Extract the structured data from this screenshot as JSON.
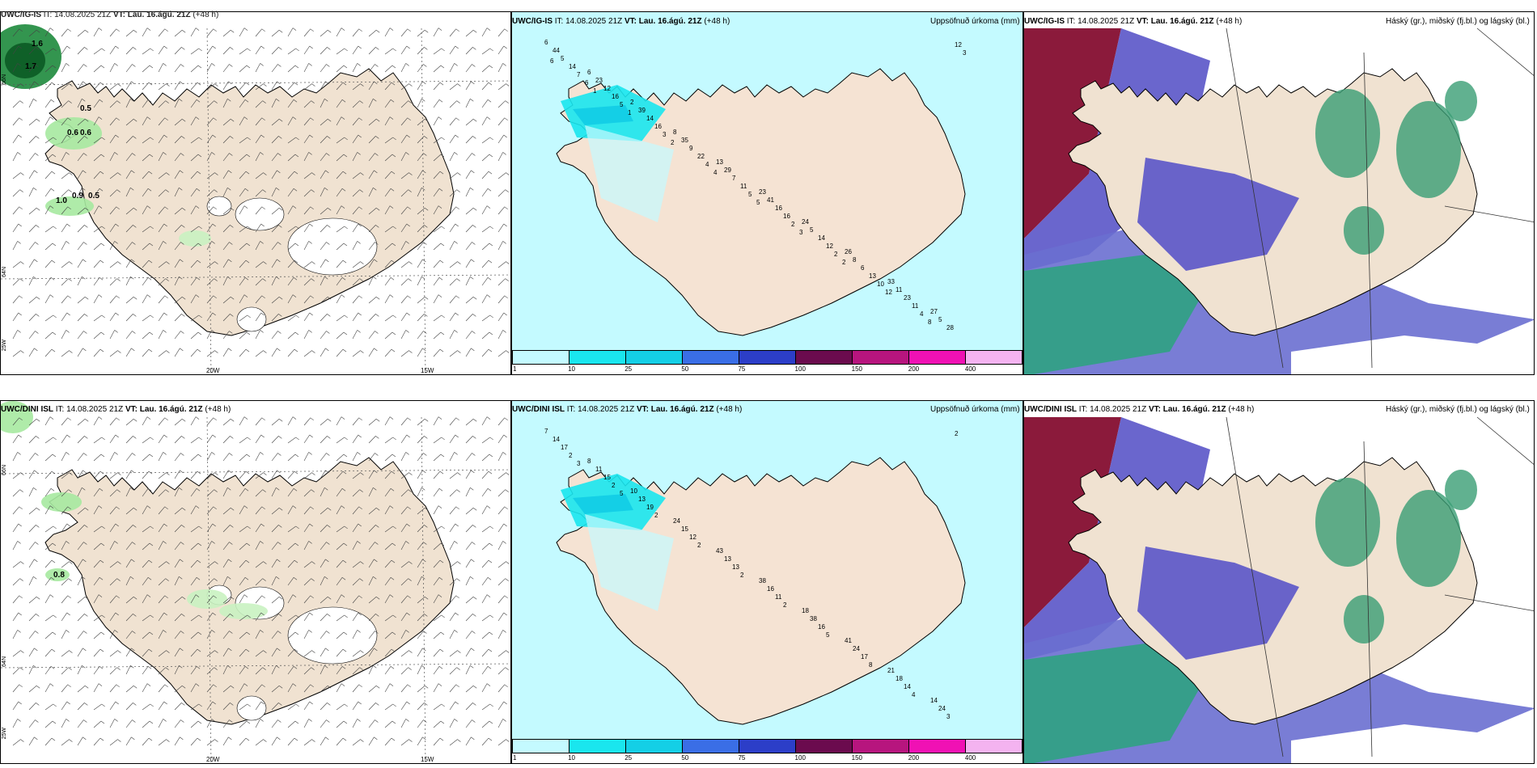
{
  "header_common": {
    "it_label": "IT:",
    "it_value": "14.08.2025 21Z",
    "vt_label": "VT:",
    "vt_value": "Lau. 16.ágú. 21Z",
    "lead": "(+48 h)"
  },
  "rows": [
    {
      "model": "UWC/IG-IS"
    },
    {
      "model": "UWC/DINI ISL"
    }
  ],
  "precip_title": "Uppsöfnuð úrkoma (mm)",
  "cloud_title": "Háský (gr.), miðský (fj.bl.) og lágský (bl.)",
  "colorbar": {
    "labels": [
      "1",
      "10",
      "25",
      "50",
      "75",
      "100",
      "150",
      "200",
      "400"
    ],
    "colors": [
      "#c4faff",
      "#1ae6ee",
      "#14cfe6",
      "#3a6ee6",
      "#2c3ec8",
      "#6b0b4e",
      "#b7157e",
      "#f011b4",
      "#f4b3f0"
    ]
  },
  "axes": {
    "lon_labels": [
      "20W",
      "15W"
    ],
    "lat_labels": [
      "66N",
      "64N"
    ],
    "lon_west": "25W"
  },
  "wind_panel_values_top": [
    "1.6",
    "1.7",
    "0.5",
    "0.6",
    "0.6",
    "1.0",
    "0.9",
    "0.5"
  ],
  "wind_panel_values_bottom": [
    "0.8"
  ],
  "precip_values_top": [
    "6",
    "6",
    "2",
    "8",
    "13",
    "23",
    "24",
    "26",
    "33",
    "27",
    "44",
    "23",
    "39",
    "35",
    "29",
    "41",
    "5",
    "8",
    "11",
    "5",
    "5",
    "12",
    "14",
    "9",
    "7",
    "16",
    "14",
    "6",
    "23",
    "28",
    "14",
    "16",
    "16",
    "22",
    "11",
    "16",
    "12",
    "13",
    "11",
    "12",
    "7",
    "5",
    "3",
    "4",
    "5",
    "2",
    "2",
    "10",
    "4",
    "3",
    "6",
    "1",
    "2",
    "4",
    "5",
    "3",
    "2",
    "12",
    "8",
    "6",
    "1"
  ],
  "precip_values_bottom": [
    "7",
    "8",
    "10",
    "24",
    "43",
    "38",
    "18",
    "41",
    "21",
    "14",
    "14",
    "11",
    "13",
    "15",
    "13",
    "16",
    "38",
    "24",
    "18",
    "24",
    "17",
    "15",
    "19",
    "12",
    "13",
    "11",
    "16",
    "17",
    "14",
    "3",
    "2",
    "2",
    "2",
    "2",
    "2",
    "2",
    "5",
    "8",
    "4",
    "2",
    "3",
    "5"
  ]
}
